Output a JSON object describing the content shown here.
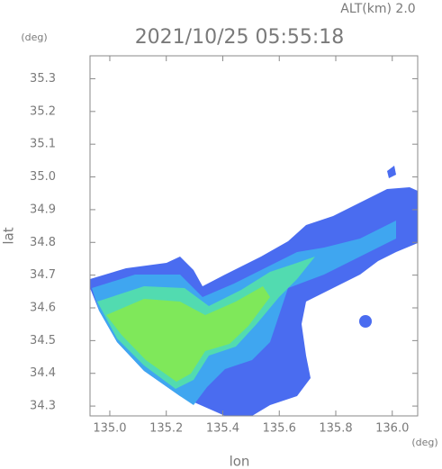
{
  "chart_data": {
    "type": "map",
    "title": "2021/10/25 05:55:18",
    "subtitle": "ALT(km) 2.0",
    "x_label": "lon",
    "y_label": "lat",
    "x_unit": "(deg)",
    "y_unit": "(deg)",
    "xlim": [
      134.93,
      136.09
    ],
    "ylim": [
      34.27,
      35.37
    ],
    "xticks": [
      {
        "value": 135.0,
        "label": "135.0"
      },
      135.2,
      135.4,
      135.6,
      135.8,
      {
        "value": 136.0,
        "label": "136.0"
      }
    ],
    "yticks": [
      35.3,
      35.2,
      35.1,
      {
        "value": 35.0,
        "label": "35.0"
      },
      34.9,
      34.8,
      34.7,
      34.6,
      34.5,
      34.4,
      34.3
    ]
  }
}
